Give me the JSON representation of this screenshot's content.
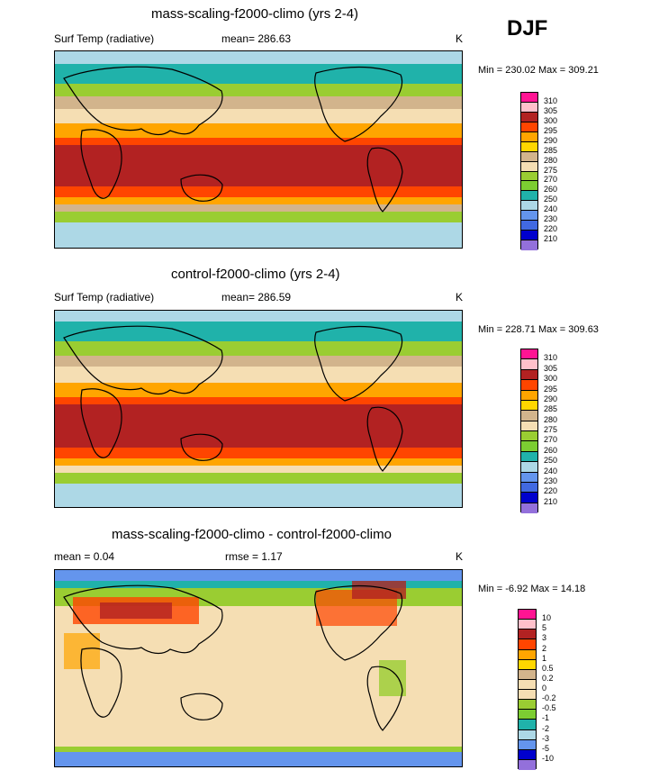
{
  "season": "DJF",
  "panels": [
    {
      "title": "mass-scaling-f2000-climo (yrs 2-4)",
      "left_label": "Surf Temp (radiative)",
      "mid_label": "mean= 286.63",
      "units": "K",
      "minmax": "Min = 230.02 Max = 309.21",
      "legend": [
        "310",
        "305",
        "300",
        "295",
        "290",
        "285",
        "280",
        "275",
        "270",
        "260",
        "250",
        "240",
        "230",
        "220",
        "210"
      ],
      "colors": [
        "#ff1493",
        "#ffc0cb",
        "#b22222",
        "#ff4500",
        "#ffa500",
        "#ffd700",
        "#d2b48c",
        "#f5deb3",
        "#9acd32",
        "#7ccd32",
        "#20b2aa",
        "#add8e6",
        "#6495ed",
        "#4169e1",
        "#0000cd",
        "#9370db"
      ]
    },
    {
      "title": "control-f2000-climo (yrs 2-4)",
      "left_label": "Surf Temp (radiative)",
      "mid_label": "mean= 286.59",
      "units": "K",
      "minmax": "Min = 228.71 Max = 309.63",
      "legend": [
        "310",
        "305",
        "300",
        "295",
        "290",
        "285",
        "280",
        "275",
        "270",
        "260",
        "250",
        "240",
        "230",
        "220",
        "210"
      ],
      "colors": [
        "#ff1493",
        "#ffc0cb",
        "#b22222",
        "#ff4500",
        "#ffa500",
        "#ffd700",
        "#d2b48c",
        "#f5deb3",
        "#9acd32",
        "#7ccd32",
        "#20b2aa",
        "#add8e6",
        "#6495ed",
        "#4169e1",
        "#0000cd",
        "#9370db"
      ]
    },
    {
      "title": "mass-scaling-f2000-climo - control-f2000-climo",
      "left_label": "mean =   0.04",
      "mid_label": "rmse =   1.17",
      "units": "K",
      "minmax": "Min =  -6.92 Max =  14.18",
      "legend": [
        "10",
        "5",
        "3",
        "2",
        "1",
        "0.5",
        "0.2",
        "0",
        "-0.2",
        "-0.5",
        "-1",
        "-2",
        "-3",
        "-5",
        "-10"
      ],
      "colors": [
        "#ff1493",
        "#ffc0cb",
        "#b22222",
        "#ff4500",
        "#ffa500",
        "#ffd700",
        "#d2b48c",
        "#f5deb3",
        "#f5deb3",
        "#9acd32",
        "#7ccd32",
        "#20b2aa",
        "#add8e6",
        "#6495ed",
        "#0000cd",
        "#9370db"
      ]
    }
  ]
}
